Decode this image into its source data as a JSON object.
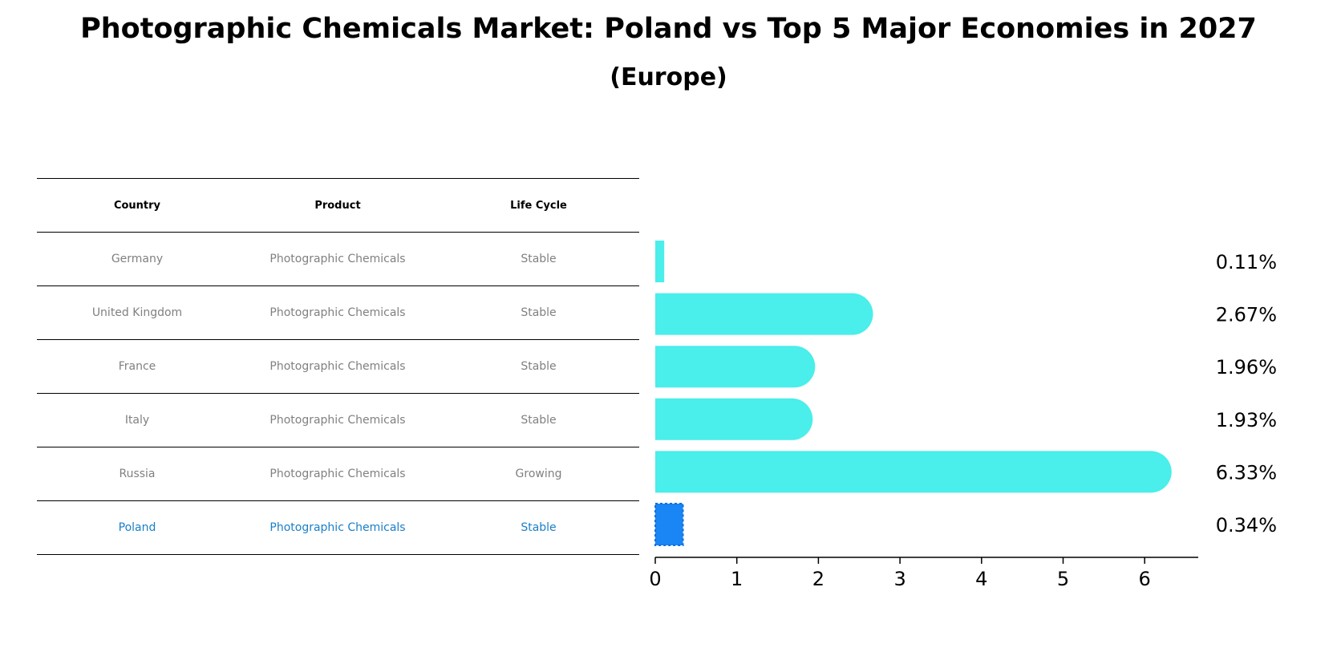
{
  "title": "Photographic Chemicals Market: Poland vs Top 5 Major Economies in 2027",
  "subtitle": "(Europe)",
  "table": {
    "headers": [
      "Country",
      "Product",
      "Life Cycle"
    ],
    "rows": [
      [
        "Germany",
        "Photographic Chemicals",
        "Stable"
      ],
      [
        "United Kingdom",
        "Photographic Chemicals",
        "Stable"
      ],
      [
        "France",
        "Photographic Chemicals",
        "Stable"
      ],
      [
        "Italy",
        "Photographic Chemicals",
        "Stable"
      ],
      [
        "Russia",
        "Photographic Chemicals",
        "Growing"
      ],
      [
        "Poland",
        "Photographic Chemicals",
        "Stable"
      ]
    ],
    "highlight_row": 5
  },
  "chart_data": {
    "type": "bar",
    "orientation": "horizontal",
    "categories": [
      "Germany",
      "United Kingdom",
      "France",
      "Italy",
      "Russia",
      "Poland"
    ],
    "values": [
      0.11,
      2.67,
      1.96,
      1.93,
      6.33,
      0.34
    ],
    "value_labels": [
      "0.11%",
      "2.67%",
      "1.96%",
      "1.93%",
      "6.33%",
      "0.34%"
    ],
    "xticks": [
      0,
      1,
      2,
      3,
      4,
      5,
      6
    ],
    "xlim": [
      0,
      6.63
    ],
    "highlight_index": 5,
    "colors": {
      "bar": "#4aeeea",
      "highlight": "#1a85f5",
      "table_text": "#808080",
      "highlight_text": "#1a7fc8"
    }
  }
}
